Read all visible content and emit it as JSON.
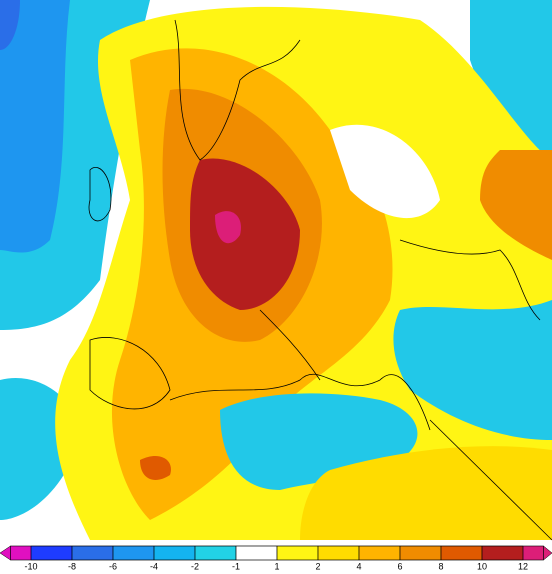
{
  "colorbar": {
    "ticks": [
      -10,
      -8,
      -6,
      -4,
      -2,
      -1,
      1,
      2,
      4,
      6,
      8,
      10,
      12
    ],
    "colors": [
      "#e010c0",
      "#1e3cff",
      "#2a6ee8",
      "#1e96f0",
      "#14b4f0",
      "#22d2e6",
      "#ffffff",
      "#fff514",
      "#ffdc00",
      "#ffb400",
      "#f08c00",
      "#e05a00",
      "#b41e1e",
      "#dc1e78"
    ]
  }
}
